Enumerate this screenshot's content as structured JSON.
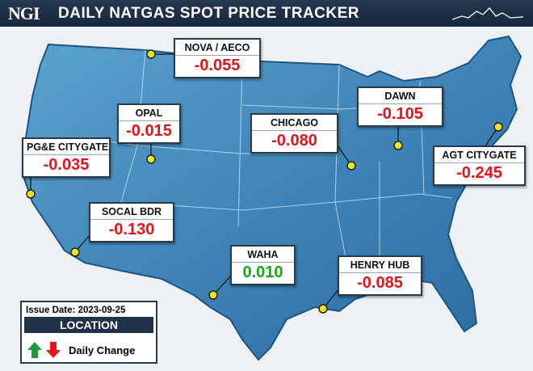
{
  "header": {
    "logo": "NGI",
    "title": "DAILY NATGAS SPOT PRICE TRACKER"
  },
  "locations": [
    {
      "name": "NOVA / AECO",
      "change": "-0.055",
      "color": "#e3141b"
    },
    {
      "name": "OPAL",
      "change": "-0.015",
      "color": "#e3141b"
    },
    {
      "name": "PG&E CITYGATE",
      "change": "-0.035",
      "color": "#e3141b"
    },
    {
      "name": "SOCAL BDR",
      "change": "-0.130",
      "color": "#e3141b"
    },
    {
      "name": "CHICAGO",
      "change": "-0.080",
      "color": "#e3141b"
    },
    {
      "name": "DAWN",
      "change": "-0.105",
      "color": "#e3141b"
    },
    {
      "name": "AGT CITYGATE",
      "change": "-0.245",
      "color": "#e3141b"
    },
    {
      "name": "WAHA",
      "change": "0.010",
      "color": "#19a51f"
    },
    {
      "name": "HENRY HUB",
      "change": "-0.085",
      "color": "#e3141b"
    }
  ],
  "legend": {
    "issue_date_label": "Issue Date:",
    "issue_date": "2023-09-25",
    "location": "LOCATION",
    "daily_change": "Daily Change"
  }
}
